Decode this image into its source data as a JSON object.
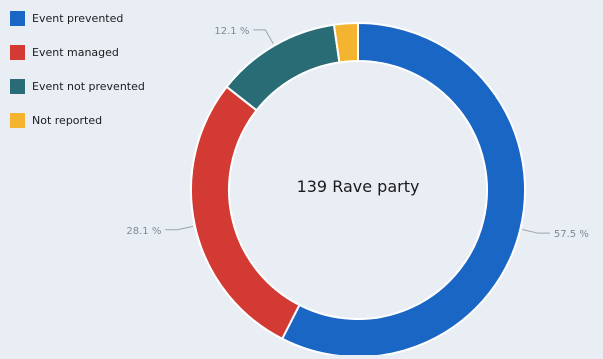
{
  "chart_data": {
    "type": "pie",
    "center_label": "139 Rave party",
    "categories": [
      "Event prevented",
      "Event managed",
      "Event not prevented",
      "Not reported"
    ],
    "values": [
      57.5,
      28.1,
      12.1,
      2.3
    ],
    "value_labels": [
      "57.5 %",
      "28.1 %",
      "12.1 %",
      ""
    ],
    "colors": [
      "#1a66c4",
      "#d33a33",
      "#2a6c76",
      "#f4b42f"
    ],
    "donut": true,
    "legend_position": "top-left"
  }
}
